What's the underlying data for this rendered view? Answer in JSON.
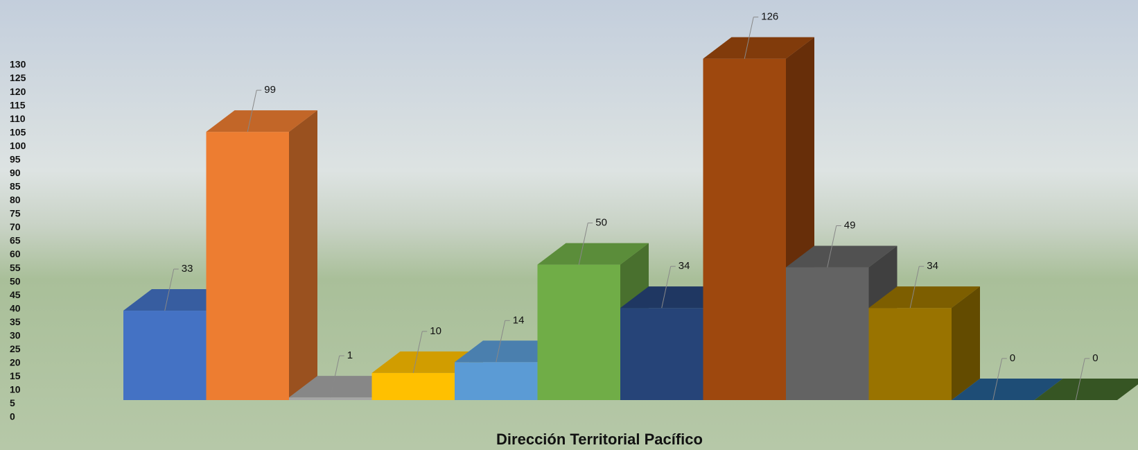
{
  "chart_data": {
    "type": "bar3d",
    "x_label": "Dirección Territorial Pacífico",
    "categories": [
      null,
      null,
      null,
      null,
      null,
      null,
      null,
      null,
      null,
      null,
      null,
      null
    ],
    "values": [
      33,
      99,
      1,
      10,
      14,
      50,
      34,
      126,
      49,
      34,
      0,
      0
    ],
    "colors": [
      "#4472c4",
      "#ed7d31",
      "#a5a5a5",
      "#ffc000",
      "#5b9bd5",
      "#70ad47",
      "#264478",
      "#9e480e",
      "#636363",
      "#997300",
      "#255e91",
      "#43682b"
    ],
    "ylim": [
      0,
      130
    ],
    "yticks": [
      0,
      5,
      10,
      15,
      20,
      25,
      30,
      35,
      40,
      45,
      50,
      55,
      60,
      65,
      70,
      75,
      80,
      85,
      90,
      95,
      100,
      105,
      110,
      115,
      120,
      125,
      130
    ]
  }
}
